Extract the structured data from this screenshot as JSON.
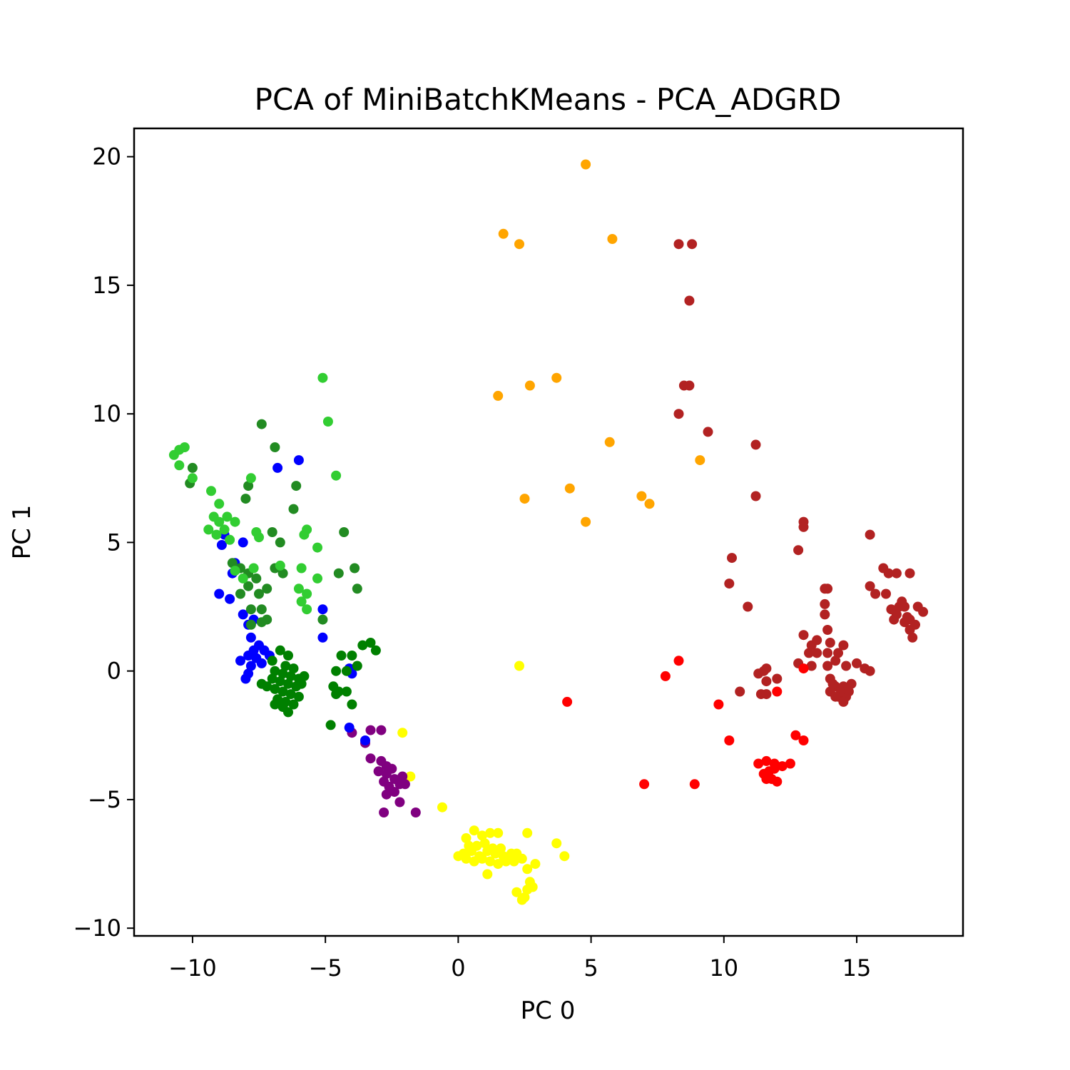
{
  "chart_data": {
    "type": "scatter",
    "title": "PCA of MiniBatchKMeans - PCA_ADGRD",
    "xlabel": "PC 0",
    "ylabel": "PC 1",
    "xlim": [
      -12.2,
      19.0
    ],
    "ylim": [
      -10.3,
      21.1
    ],
    "xticks": [
      -10,
      -5,
      0,
      5,
      10,
      15
    ],
    "xtick_labels": [
      "−10",
      "−5",
      "0",
      "5",
      "10",
      "15"
    ],
    "yticks": [
      -10,
      -5,
      0,
      5,
      10,
      15,
      20
    ],
    "ytick_labels": [
      "−10",
      "−5",
      "0",
      "5",
      "10",
      "15",
      "20"
    ],
    "grid": false,
    "series": [
      {
        "color": "#ffa500",
        "points": [
          [
            4.8,
            19.7
          ],
          [
            1.7,
            17.0
          ],
          [
            2.3,
            16.6
          ],
          [
            5.8,
            16.8
          ],
          [
            1.5,
            10.7
          ],
          [
            2.7,
            11.1
          ],
          [
            3.7,
            11.4
          ],
          [
            5.7,
            8.9
          ],
          [
            9.1,
            8.2
          ],
          [
            2.5,
            6.7
          ],
          [
            4.2,
            7.1
          ],
          [
            6.9,
            6.8
          ],
          [
            7.2,
            6.5
          ],
          [
            4.8,
            5.8
          ]
        ]
      },
      {
        "color": "#b22222",
        "points": [
          [
            8.3,
            16.6
          ],
          [
            8.8,
            16.6
          ],
          [
            8.7,
            14.4
          ],
          [
            8.5,
            11.1
          ],
          [
            8.7,
            11.1
          ],
          [
            8.3,
            10.0
          ],
          [
            9.4,
            9.3
          ],
          [
            11.2,
            8.8
          ],
          [
            11.2,
            6.8
          ],
          [
            13.0,
            5.8
          ],
          [
            13.0,
            5.6
          ],
          [
            15.5,
            5.3
          ],
          [
            12.8,
            4.7
          ],
          [
            10.3,
            4.4
          ],
          [
            10.2,
            3.4
          ],
          [
            10.9,
            2.5
          ],
          [
            16.0,
            4.0
          ],
          [
            16.2,
            3.8
          ],
          [
            16.5,
            3.8
          ],
          [
            17.0,
            3.8
          ],
          [
            15.5,
            3.3
          ],
          [
            15.7,
            3.0
          ],
          [
            16.1,
            3.0
          ],
          [
            13.8,
            3.2
          ],
          [
            13.9,
            3.2
          ],
          [
            13.8,
            2.6
          ],
          [
            13.8,
            2.2
          ],
          [
            16.3,
            2.4
          ],
          [
            16.5,
            2.2
          ],
          [
            16.8,
            2.5
          ],
          [
            17.0,
            2.0
          ],
          [
            17.2,
            1.8
          ],
          [
            16.7,
            2.7
          ],
          [
            16.4,
            2.0
          ],
          [
            17.5,
            2.3
          ],
          [
            17.3,
            2.5
          ],
          [
            17.0,
            1.6
          ],
          [
            17.1,
            1.3
          ],
          [
            16.9,
            2.1
          ],
          [
            16.6,
            2.5
          ],
          [
            16.8,
            1.9
          ],
          [
            13.0,
            1.4
          ],
          [
            13.5,
            1.2
          ],
          [
            13.9,
            1.6
          ],
          [
            13.3,
            1.0
          ],
          [
            14.0,
            1.1
          ],
          [
            14.5,
            1.0
          ],
          [
            13.2,
            0.7
          ],
          [
            13.5,
            0.7
          ],
          [
            13.9,
            0.7
          ],
          [
            14.3,
            0.7
          ],
          [
            12.8,
            0.3
          ],
          [
            13.3,
            0.2
          ],
          [
            13.9,
            0.2
          ],
          [
            14.2,
            0.4
          ],
          [
            15.0,
            0.3
          ],
          [
            15.3,
            0.1
          ],
          [
            15.5,
            0.0
          ],
          [
            14.6,
            0.2
          ],
          [
            11.5,
            0.0
          ],
          [
            11.6,
            0.1
          ],
          [
            11.3,
            -0.1
          ],
          [
            11.6,
            -0.4
          ],
          [
            12.0,
            -0.3
          ],
          [
            10.6,
            -0.8
          ],
          [
            11.4,
            -0.9
          ],
          [
            11.6,
            -0.9
          ],
          [
            14.0,
            -0.3
          ],
          [
            14.2,
            -0.6
          ],
          [
            14.5,
            -0.6
          ],
          [
            14.8,
            -0.5
          ],
          [
            14.0,
            -0.8
          ],
          [
            14.3,
            -1.0
          ],
          [
            14.6,
            -1.0
          ],
          [
            14.1,
            -0.5
          ],
          [
            14.4,
            -0.8
          ],
          [
            14.7,
            -0.8
          ],
          [
            14.2,
            -1.0
          ],
          [
            14.5,
            -1.2
          ]
        ]
      },
      {
        "color": "#ff0000",
        "points": [
          [
            8.3,
            0.4
          ],
          [
            7.8,
            -0.2
          ],
          [
            4.1,
            -1.2
          ],
          [
            9.8,
            -1.3
          ],
          [
            12.0,
            -0.8
          ],
          [
            13.0,
            0.1
          ],
          [
            10.2,
            -2.7
          ],
          [
            12.7,
            -2.5
          ],
          [
            13.0,
            -2.7
          ],
          [
            11.3,
            -3.6
          ],
          [
            11.6,
            -3.5
          ],
          [
            11.9,
            -3.8
          ],
          [
            12.2,
            -3.7
          ],
          [
            12.5,
            -3.6
          ],
          [
            11.5,
            -4.0
          ],
          [
            11.8,
            -4.2
          ],
          [
            12.0,
            -4.3
          ],
          [
            11.7,
            -3.9
          ],
          [
            11.9,
            -3.6
          ],
          [
            11.6,
            -4.2
          ],
          [
            7.0,
            -4.4
          ],
          [
            8.9,
            -4.4
          ]
        ]
      },
      {
        "color": "#ffff00",
        "points": [
          [
            2.3,
            0.2
          ],
          [
            -2.1,
            -2.4
          ],
          [
            -1.8,
            -4.1
          ],
          [
            -0.6,
            -5.3
          ],
          [
            0.3,
            -6.5
          ],
          [
            0.6,
            -6.2
          ],
          [
            0.9,
            -6.4
          ],
          [
            1.2,
            -6.3
          ],
          [
            1.5,
            -6.3
          ],
          [
            0.4,
            -6.8
          ],
          [
            0.7,
            -6.8
          ],
          [
            1.0,
            -6.7
          ],
          [
            1.3,
            -6.9
          ],
          [
            1.6,
            -6.9
          ],
          [
            0.2,
            -7.1
          ],
          [
            0.5,
            -7.0
          ],
          [
            0.8,
            -7.2
          ],
          [
            1.1,
            -7.0
          ],
          [
            1.4,
            -7.1
          ],
          [
            1.7,
            -7.2
          ],
          [
            2.0,
            -7.1
          ],
          [
            0.0,
            -7.2
          ],
          [
            0.3,
            -7.3
          ],
          [
            0.6,
            -7.4
          ],
          [
            0.9,
            -7.3
          ],
          [
            1.2,
            -7.4
          ],
          [
            1.5,
            -7.5
          ],
          [
            1.8,
            -7.4
          ],
          [
            2.1,
            -7.4
          ],
          [
            2.4,
            -7.3
          ],
          [
            2.2,
            -7.1
          ],
          [
            2.6,
            -6.3
          ],
          [
            3.7,
            -6.7
          ],
          [
            4.0,
            -7.2
          ],
          [
            2.6,
            -7.7
          ],
          [
            2.9,
            -7.5
          ],
          [
            1.1,
            -7.9
          ],
          [
            2.7,
            -8.2
          ],
          [
            2.6,
            -8.5
          ],
          [
            2.8,
            -8.4
          ],
          [
            2.2,
            -8.6
          ],
          [
            2.5,
            -8.8
          ],
          [
            2.4,
            -8.9
          ]
        ]
      },
      {
        "color": "#800080",
        "points": [
          [
            -3.3,
            -2.3
          ],
          [
            -2.9,
            -2.3
          ],
          [
            -4.0,
            -2.4
          ],
          [
            -3.5,
            -2.8
          ],
          [
            -3.3,
            -3.4
          ],
          [
            -2.9,
            -3.5
          ],
          [
            -2.7,
            -3.7
          ],
          [
            -2.5,
            -3.8
          ],
          [
            -3.0,
            -3.9
          ],
          [
            -2.7,
            -4.0
          ],
          [
            -2.4,
            -4.2
          ],
          [
            -2.1,
            -4.1
          ],
          [
            -2.8,
            -4.3
          ],
          [
            -2.6,
            -4.5
          ],
          [
            -2.2,
            -4.4
          ],
          [
            -2.0,
            -4.4
          ],
          [
            -2.7,
            -4.8
          ],
          [
            -2.4,
            -4.7
          ],
          [
            -2.2,
            -5.1
          ],
          [
            -2.8,
            -5.5
          ],
          [
            -1.6,
            -5.5
          ]
        ]
      },
      {
        "color": "#0000ff",
        "points": [
          [
            -6.8,
            7.9
          ],
          [
            -6.0,
            8.2
          ],
          [
            -8.8,
            5.3
          ],
          [
            -8.9,
            4.9
          ],
          [
            -8.1,
            5.0
          ],
          [
            -8.4,
            4.2
          ],
          [
            -8.5,
            3.8
          ],
          [
            -9.0,
            3.0
          ],
          [
            -8.6,
            2.8
          ],
          [
            -8.1,
            2.2
          ],
          [
            -7.7,
            2.0
          ],
          [
            -7.9,
            1.8
          ],
          [
            -5.1,
            2.4
          ],
          [
            -5.1,
            1.3
          ],
          [
            -7.8,
            1.3
          ],
          [
            -7.5,
            1.0
          ],
          [
            -7.7,
            0.8
          ],
          [
            -7.9,
            0.6
          ],
          [
            -7.6,
            0.5
          ],
          [
            -8.2,
            0.4
          ],
          [
            -7.8,
            0.2
          ],
          [
            -7.4,
            0.3
          ],
          [
            -7.1,
            0.6
          ],
          [
            -7.3,
            0.8
          ],
          [
            -7.9,
            -0.1
          ],
          [
            -8.0,
            -0.3
          ],
          [
            -4.1,
            0.1
          ],
          [
            -4.0,
            -0.1
          ],
          [
            -3.5,
            -2.7
          ],
          [
            -4.1,
            -2.2
          ]
        ]
      },
      {
        "color": "#008000",
        "points": [
          [
            -6.7,
            0.8
          ],
          [
            -6.4,
            0.6
          ],
          [
            -7.0,
            0.4
          ],
          [
            -6.5,
            0.2
          ],
          [
            -6.2,
            0.1
          ],
          [
            -6.9,
            0.0
          ],
          [
            -6.6,
            -0.1
          ],
          [
            -6.3,
            -0.2
          ],
          [
            -6.0,
            -0.3
          ],
          [
            -5.8,
            -0.2
          ],
          [
            -7.0,
            -0.3
          ],
          [
            -6.7,
            -0.4
          ],
          [
            -6.4,
            -0.5
          ],
          [
            -6.1,
            -0.6
          ],
          [
            -5.9,
            -0.5
          ],
          [
            -7.2,
            -0.6
          ],
          [
            -6.9,
            -0.7
          ],
          [
            -6.6,
            -0.8
          ],
          [
            -6.3,
            -0.9
          ],
          [
            -6.0,
            -1.0
          ],
          [
            -6.8,
            -1.1
          ],
          [
            -6.5,
            -1.2
          ],
          [
            -6.2,
            -1.3
          ],
          [
            -6.9,
            -1.3
          ],
          [
            -6.4,
            -1.6
          ],
          [
            -6.6,
            -1.4
          ],
          [
            -7.4,
            -0.5
          ],
          [
            -4.7,
            -0.6
          ],
          [
            -4.5,
            -0.8
          ],
          [
            -4.2,
            -0.8
          ],
          [
            -4.6,
            -0.9
          ],
          [
            -4.0,
            -1.3
          ],
          [
            -4.4,
            0.6
          ],
          [
            -4.0,
            0.6
          ],
          [
            -4.6,
            0.0
          ],
          [
            -4.2,
            0.0
          ],
          [
            -3.8,
            0.2
          ],
          [
            -3.6,
            1.0
          ],
          [
            -3.3,
            1.1
          ],
          [
            -3.1,
            0.8
          ],
          [
            -4.8,
            -2.1
          ]
        ]
      },
      {
        "color": "#228b22",
        "points": [
          [
            -7.4,
            9.6
          ],
          [
            -10.0,
            7.9
          ],
          [
            -10.1,
            7.3
          ],
          [
            -6.9,
            8.7
          ],
          [
            -7.9,
            7.2
          ],
          [
            -6.1,
            7.2
          ],
          [
            -6.2,
            6.3
          ],
          [
            -8.0,
            6.7
          ],
          [
            -7.0,
            5.4
          ],
          [
            -6.7,
            5.0
          ],
          [
            -4.3,
            5.4
          ],
          [
            -8.5,
            4.2
          ],
          [
            -8.2,
            4.0
          ],
          [
            -7.9,
            3.8
          ],
          [
            -7.6,
            3.6
          ],
          [
            -7.9,
            3.3
          ],
          [
            -8.2,
            3.0
          ],
          [
            -7.5,
            3.0
          ],
          [
            -7.2,
            3.2
          ],
          [
            -6.9,
            4.0
          ],
          [
            -6.6,
            3.8
          ],
          [
            -7.4,
            2.4
          ],
          [
            -7.8,
            2.4
          ],
          [
            -7.2,
            2.0
          ],
          [
            -7.8,
            1.8
          ],
          [
            -7.4,
            1.9
          ],
          [
            -4.5,
            3.8
          ],
          [
            -3.9,
            4.0
          ],
          [
            -3.8,
            3.2
          ],
          [
            -5.1,
            2.0
          ]
        ]
      },
      {
        "color": "#32cd32",
        "points": [
          [
            -10.7,
            8.4
          ],
          [
            -10.5,
            8.6
          ],
          [
            -10.3,
            8.7
          ],
          [
            -10.5,
            8.0
          ],
          [
            -10.0,
            7.5
          ],
          [
            -9.3,
            7.0
          ],
          [
            -9.0,
            6.5
          ],
          [
            -9.2,
            6.0
          ],
          [
            -9.0,
            5.8
          ],
          [
            -8.8,
            5.5
          ],
          [
            -9.4,
            5.5
          ],
          [
            -9.1,
            5.3
          ],
          [
            -8.6,
            5.1
          ],
          [
            -8.4,
            5.8
          ],
          [
            -8.7,
            6.0
          ],
          [
            -7.8,
            7.5
          ],
          [
            -7.6,
            5.4
          ],
          [
            -7.5,
            5.2
          ],
          [
            -5.1,
            11.4
          ],
          [
            -4.9,
            9.7
          ],
          [
            -4.6,
            7.6
          ],
          [
            -5.7,
            5.5
          ],
          [
            -5.8,
            5.3
          ],
          [
            -5.3,
            4.8
          ],
          [
            -6.7,
            4.1
          ],
          [
            -5.9,
            4.0
          ],
          [
            -6.0,
            3.2
          ],
          [
            -5.7,
            3.0
          ],
          [
            -5.9,
            2.7
          ],
          [
            -5.7,
            2.4
          ],
          [
            -5.3,
            3.6
          ],
          [
            -8.4,
            3.9
          ],
          [
            -7.7,
            4.0
          ],
          [
            -8.1,
            3.6
          ]
        ]
      }
    ]
  }
}
